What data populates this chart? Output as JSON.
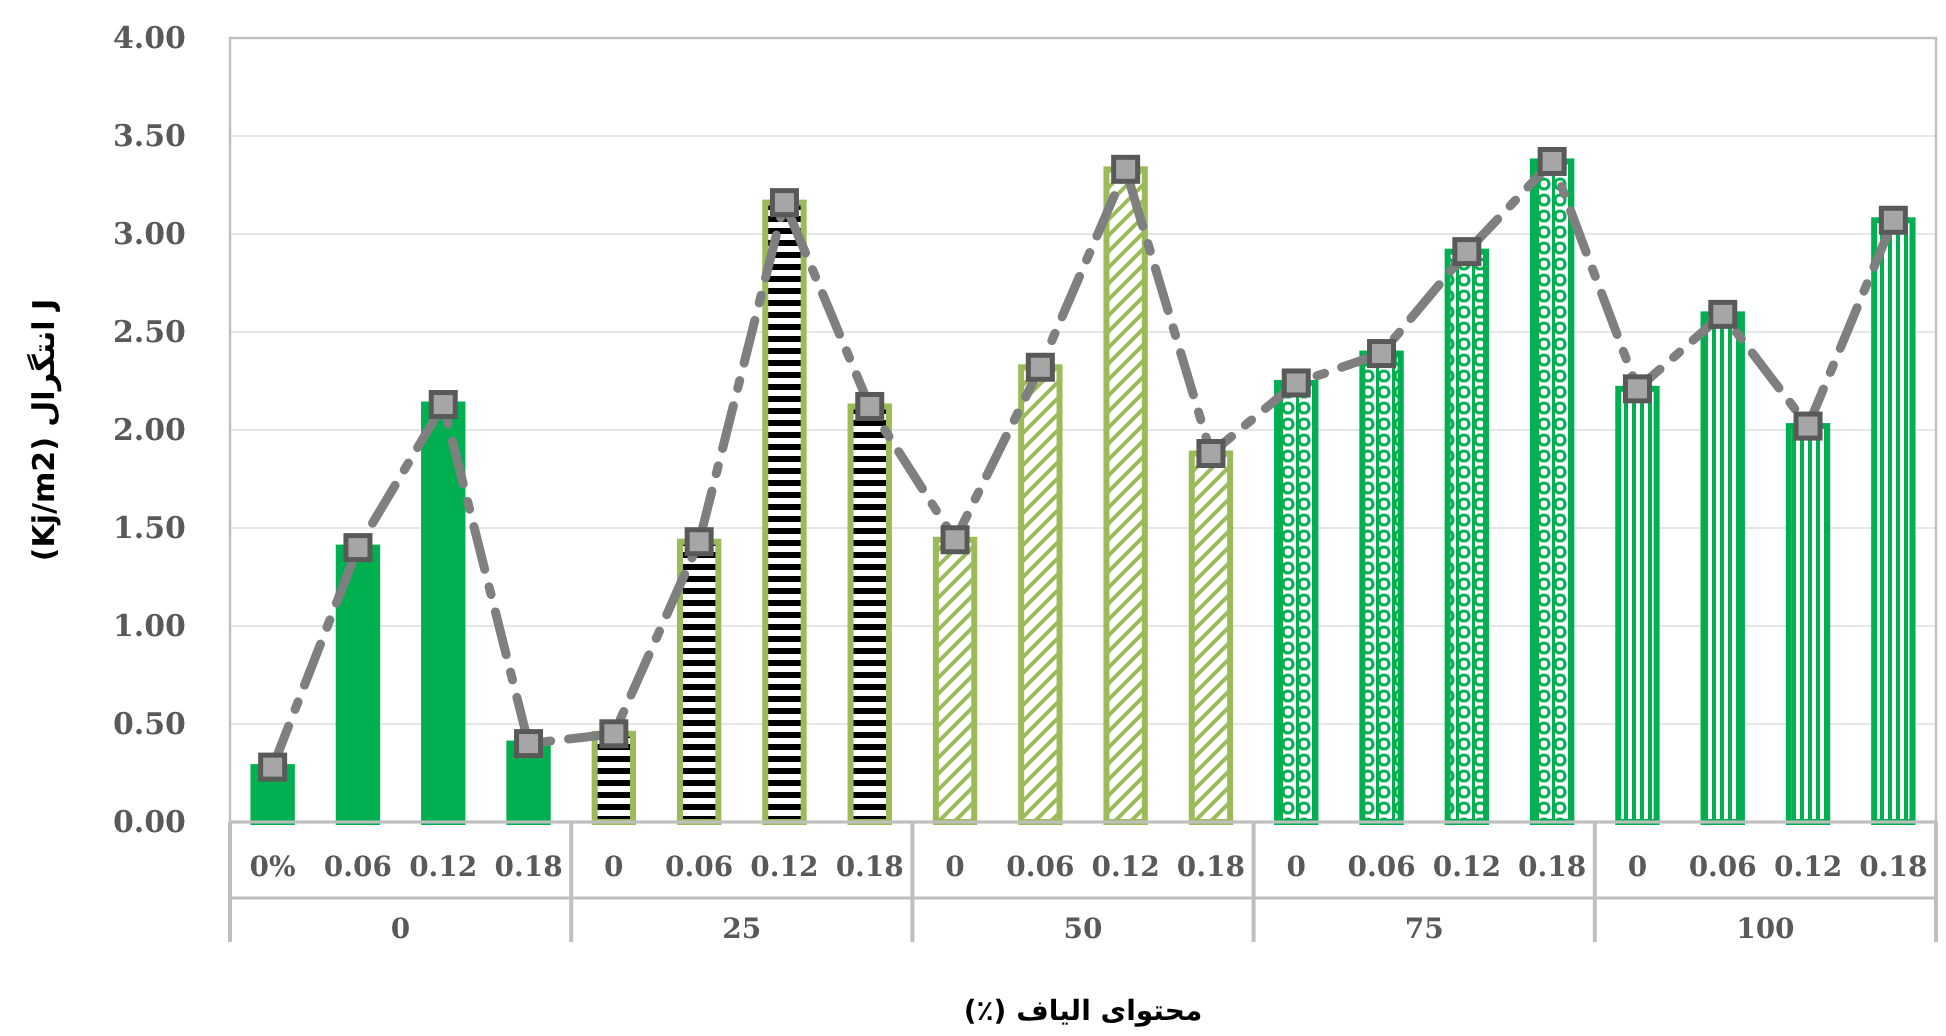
{
  "chart_data": {
    "type": "bar",
    "xlabel": "محتوای الیاف (٪)",
    "ylabel": "(Kj/m2) انتگرال J",
    "categories": [
      "0%",
      "0.06",
      "0.12",
      "0.18",
      "0",
      "0.06",
      "0.12",
      "0.18",
      "0",
      "0.06",
      "0.12",
      "0.18",
      "0",
      "0.06",
      "0.12",
      "0.18",
      "0",
      "0.06",
      "0.12",
      "0.18"
    ],
    "annotations": [
      "0",
      "25",
      "50",
      "75",
      "100"
    ],
    "series": [
      {
        "colors": [
          "#00b050",
          "#00b050",
          "#00b050",
          "#00b050",
          "#9bbb59",
          "#9bbb59",
          "#9bbb59",
          "#9bbb59",
          "#9bbb59",
          "#9bbb59",
          "#9bbb59",
          "#9bbb59",
          "#00b050",
          "#00b050",
          "#00b050",
          "#00b050",
          "#00b050",
          "#00b050",
          "#00b050",
          "#00b050"
        ],
        "values": [
          0.28,
          1.4,
          2.13,
          0.4,
          0.45,
          1.43,
          3.16,
          2.12,
          1.44,
          2.32,
          3.33,
          1.88,
          2.24,
          2.39,
          2.91,
          3.37,
          2.21,
          2.59,
          2.02,
          3.07
        ]
      },
      {
        "type": "line",
        "color": "#7f7f7f",
        "line_style": "dashed",
        "marker": "square",
        "values": [
          0.28,
          1.4,
          2.13,
          0.4,
          0.45,
          1.43,
          3.16,
          2.12,
          1.44,
          2.32,
          3.33,
          1.88,
          2.24,
          2.39,
          2.91,
          3.37,
          2.21,
          2.59,
          2.02,
          3.07
        ]
      }
    ],
    "ylim": [
      0,
      4
    ],
    "yticks": [
      {
        "value": 0,
        "label": "0.00"
      },
      {
        "value": 0.5,
        "label": "0.50"
      },
      {
        "value": 1,
        "label": "1.00"
      },
      {
        "value": 1.5,
        "label": "1.50"
      },
      {
        "value": 2,
        "label": "2.00"
      },
      {
        "value": 2.5,
        "label": "2.50"
      },
      {
        "value": 3,
        "label": "3.00"
      },
      {
        "value": 3.5,
        "label": "3.50"
      },
      {
        "value": 4,
        "label": "4.00"
      }
    ],
    "grid": "y"
  }
}
